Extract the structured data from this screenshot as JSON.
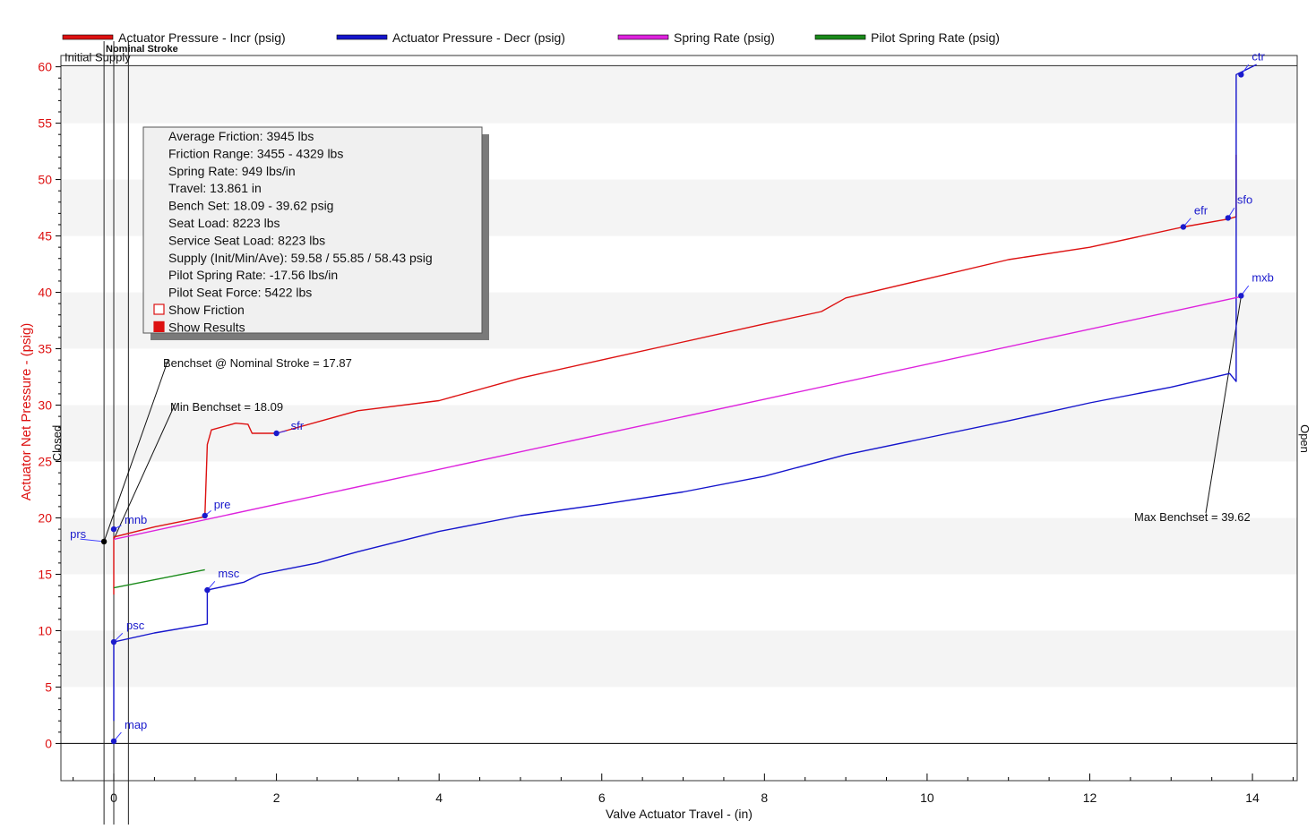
{
  "chart_data": {
    "type": "line",
    "xlabel": "Valve Actuator Travel - (in)",
    "ylabel": "Actuator Net Pressure - (psig)",
    "xlim": [
      -0.65,
      14.55
    ],
    "ylim": [
      -3.3,
      61
    ],
    "x_ticks": [
      0,
      2,
      4,
      6,
      8,
      10,
      12,
      14
    ],
    "y_ticks": [
      0,
      5,
      10,
      15,
      20,
      25,
      30,
      35,
      40,
      45,
      50,
      55,
      60
    ],
    "grid": "horizontal bands",
    "legend_position": "top",
    "side_labels": {
      "left": "Closed",
      "right": "Open"
    },
    "series": [
      {
        "name": "Actuator Pressure - Incr   (psig)",
        "color": "#dd1111",
        "points": [
          [
            0,
            13.2
          ],
          [
            0,
            18.3
          ],
          [
            0.5,
            19.2
          ],
          [
            1.12,
            20.1
          ],
          [
            1.15,
            26.5
          ],
          [
            1.2,
            27.8
          ],
          [
            1.5,
            28.4
          ],
          [
            1.65,
            28.3
          ],
          [
            1.7,
            27.5
          ],
          [
            2.0,
            27.5
          ],
          [
            3,
            29.5
          ],
          [
            4,
            30.4
          ],
          [
            5,
            32.4
          ],
          [
            6,
            34.0
          ],
          [
            7,
            35.6
          ],
          [
            8,
            37.2
          ],
          [
            8.7,
            38.3
          ],
          [
            9,
            39.5
          ],
          [
            10,
            41.2
          ],
          [
            11,
            42.9
          ],
          [
            12,
            44.0
          ],
          [
            13.15,
            45.8
          ],
          [
            13.7,
            46.5
          ],
          [
            13.8,
            46.7
          ],
          [
            13.8,
            52.2
          ]
        ]
      },
      {
        "name": "Actuator Pressure - Decr   (psig)",
        "color": "#1515cc",
        "points": [
          [
            0,
            2.0
          ],
          [
            0,
            9.0
          ],
          [
            0.5,
            9.8
          ],
          [
            1.15,
            10.6
          ],
          [
            1.15,
            13.6
          ],
          [
            1.6,
            14.3
          ],
          [
            1.8,
            15.0
          ],
          [
            2.5,
            16.0
          ],
          [
            3,
            17.0
          ],
          [
            4,
            18.8
          ],
          [
            5,
            20.2
          ],
          [
            6,
            21.2
          ],
          [
            7,
            22.3
          ],
          [
            8,
            23.7
          ],
          [
            9,
            25.6
          ],
          [
            10,
            27.1
          ],
          [
            11,
            28.6
          ],
          [
            12,
            30.2
          ],
          [
            13,
            31.6
          ],
          [
            13.72,
            32.8
          ],
          [
            13.8,
            32.1
          ],
          [
            13.8,
            59.3
          ],
          [
            14.05,
            60.2
          ]
        ]
      },
      {
        "name": "Spring Rate   (psig)",
        "color": "#dd22dd",
        "points": [
          [
            0,
            18.09
          ],
          [
            13.861,
            39.62
          ]
        ]
      },
      {
        "name": "Pilot Spring Rate   (psig)",
        "color": "#1a8a1a",
        "points": [
          [
            0,
            13.8
          ],
          [
            1.12,
            15.4
          ]
        ]
      }
    ],
    "markers": [
      {
        "label": "prs",
        "x": -0.12,
        "y": 17.9,
        "marker_color": "#000000"
      },
      {
        "label": "mnb",
        "x": 0,
        "y": 19.0,
        "marker_color": "#1a1acc"
      },
      {
        "label": "pre",
        "x": 1.12,
        "y": 20.2,
        "marker_color": "#1a1acc"
      },
      {
        "label": "sfr",
        "x": 2.0,
        "y": 27.5,
        "marker_color": "#1a1acc"
      },
      {
        "label": "msc",
        "x": 1.15,
        "y": 13.6,
        "marker_color": "#1a1acc"
      },
      {
        "label": "psc",
        "x": 0,
        "y": 9.0,
        "marker_color": "#1a1acc"
      },
      {
        "label": "map",
        "x": 0,
        "y": 0.2,
        "marker_color": "#1a1acc"
      },
      {
        "label": "efr",
        "x": 13.15,
        "y": 45.8,
        "marker_color": "#1a1acc"
      },
      {
        "label": "sfo",
        "x": 13.7,
        "y": 46.6,
        "marker_color": "#1a1acc"
      },
      {
        "label": "mxb",
        "x": 13.86,
        "y": 39.7,
        "marker_color": "#1a1acc"
      },
      {
        "label": "ctr",
        "x": 13.86,
        "y": 59.3,
        "marker_color": "#1a1acc"
      }
    ],
    "reference_lines": {
      "initial_supply": {
        "label": "Initial Supply",
        "y": 60.1
      },
      "nominal_stroke": {
        "label": "Nominal Stroke"
      },
      "vertical_x": [
        -0.12,
        0.0,
        0.18
      ]
    },
    "annotations": [
      {
        "text": "Benchset @ Nominal Stroke = 17.87",
        "x": -0.12,
        "y": 17.9
      },
      {
        "text": "Min Benchset = 18.09",
        "x": 0,
        "y": 18.1
      },
      {
        "text": "Max Benchset = 39.62",
        "x": 13.86,
        "y": 39.62
      }
    ],
    "results_box": {
      "lines": [
        "Average Friction: 3945 lbs",
        "Friction Range: 3455 - 4329 lbs",
        "Spring Rate: 949 lbs/in",
        "Travel: 13.861 in",
        "Bench Set: 18.09 - 39.62 psig",
        "Seat Load: 8223 lbs",
        "Service Seat Load: 8223 lbs",
        "Supply (Init/Min/Ave): 59.58 / 55.85 / 58.43 psig",
        "Pilot Spring Rate: -17.56 lbs/in",
        "Pilot Seat Force: 5422 lbs"
      ],
      "show_friction_label": "Show Friction",
      "show_friction_checked": false,
      "show_results_label": "Show Results",
      "show_results_checked": true
    }
  }
}
